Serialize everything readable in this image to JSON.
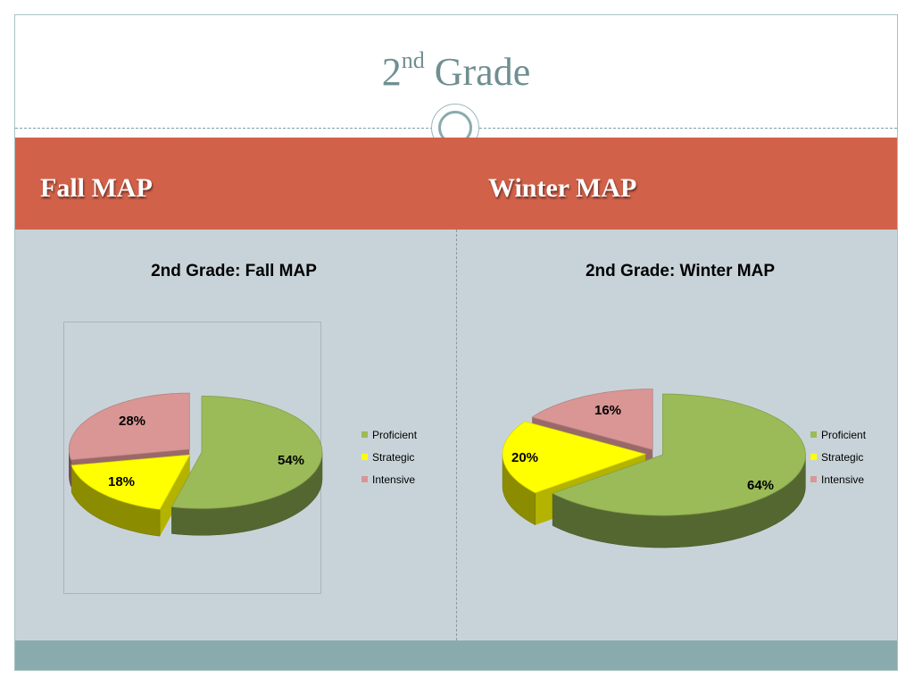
{
  "slide": {
    "title_main": "2",
    "title_sup": "nd",
    "title_rest": " Grade",
    "left_heading": "Fall MAP",
    "right_heading": "Winter MAP"
  },
  "colors": {
    "Proficient": "#9bbb59",
    "Strategic": "#ffff00",
    "Intensive": "#d99694"
  },
  "chart_data": [
    {
      "type": "pie",
      "title": "2nd Grade: Fall MAP",
      "legend_position": "right",
      "categories": [
        "Proficient",
        "Strategic",
        "Intensive"
      ],
      "values": [
        54,
        18,
        28
      ],
      "labels": [
        "54%",
        "18%",
        "28%"
      ]
    },
    {
      "type": "pie",
      "title": "2nd Grade: Winter MAP",
      "legend_position": "right",
      "categories": [
        "Proficient",
        "Strategic",
        "Intensive"
      ],
      "values": [
        64,
        20,
        16
      ],
      "labels": [
        "64%",
        "20%",
        "16%"
      ]
    }
  ]
}
